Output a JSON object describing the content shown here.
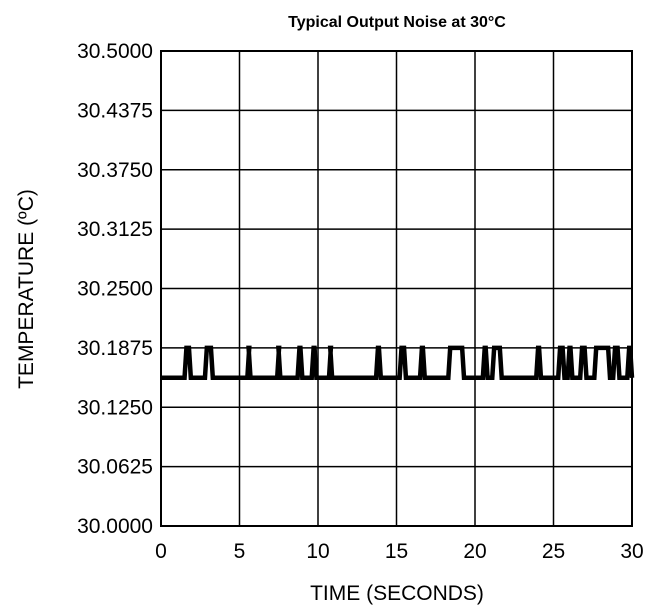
{
  "chart_data": {
    "type": "line",
    "title": "Typical Output Noise at 30°C",
    "xlabel": "TIME (SECONDS)",
    "ylabel": "TEMPERATURE (ºC)",
    "xlim": [
      0,
      30
    ],
    "ylim": [
      30.0,
      30.5
    ],
    "grid": true,
    "x_ticks": [
      0,
      5,
      10,
      15,
      20,
      25,
      30
    ],
    "x_tick_labels": [
      "0",
      "5",
      "10",
      "15",
      "20",
      "25",
      "30"
    ],
    "y_ticks": [
      30.0,
      30.0625,
      30.125,
      30.1875,
      30.25,
      30.3125,
      30.375,
      30.4375,
      30.5
    ],
    "y_tick_labels": [
      "30.0000",
      "30.0625",
      "30.1250",
      "30.1875",
      "30.2500",
      "30.3125",
      "30.3750",
      "30.4375",
      "30.5000"
    ],
    "line_color": "#000000",
    "series": [
      {
        "baseline": 30.156,
        "high_level": 30.1875,
        "pulses": [
          [
            1.5,
            1.9
          ],
          [
            2.8,
            3.3
          ],
          [
            5.5,
            5.7
          ],
          [
            7.4,
            7.6
          ],
          [
            8.7,
            9.0
          ],
          [
            9.6,
            9.9
          ],
          [
            10.7,
            10.9
          ],
          [
            13.7,
            14.0
          ],
          [
            15.2,
            15.6
          ],
          [
            16.5,
            16.8
          ],
          [
            18.3,
            19.3
          ],
          [
            20.5,
            20.8
          ],
          [
            21.1,
            21.7
          ],
          [
            23.9,
            24.2
          ],
          [
            25.3,
            25.7
          ],
          [
            25.9,
            26.2
          ],
          [
            26.7,
            27.1
          ],
          [
            27.6,
            28.6
          ],
          [
            28.8,
            29.2
          ],
          [
            29.7,
            30.0
          ]
        ]
      }
    ]
  }
}
